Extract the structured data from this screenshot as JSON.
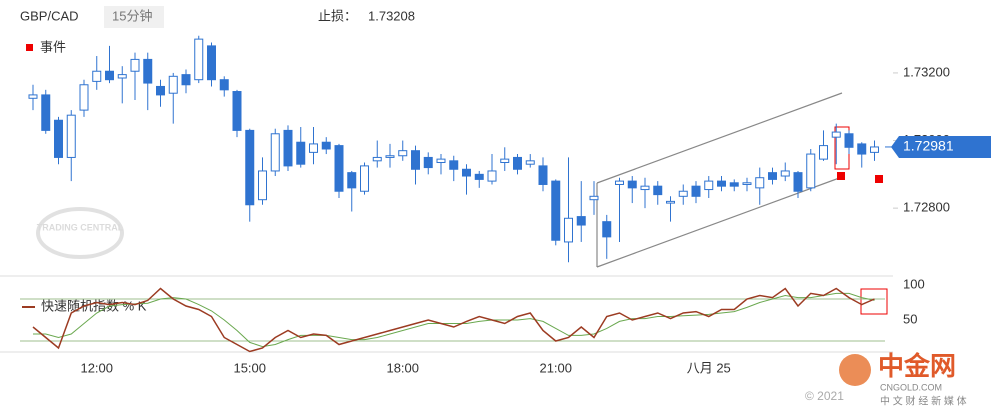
{
  "chart_data": [
    {
      "type": "candlestick",
      "title": "GBP/CAD",
      "interval": "15分钟",
      "stop_loss_label": "止损：",
      "stop_loss": "1.73208",
      "event_legend": "事件",
      "categories": [
        null,
        null,
        null,
        null,
        null,
        "12:00",
        null,
        null,
        null,
        null,
        null,
        null,
        null,
        null,
        null,
        null,
        null,
        "15:00",
        null,
        null,
        null,
        null,
        null,
        null,
        null,
        null,
        null,
        null,
        null,
        "18:00",
        null,
        null,
        null,
        null,
        null,
        null,
        null,
        null,
        null,
        null,
        null,
        "21:00",
        null,
        null,
        null,
        null,
        null,
        null,
        null,
        null,
        null,
        null,
        null,
        "八月 25",
        null,
        null,
        null,
        null,
        null,
        null,
        null,
        null,
        null,
        null,
        null,
        null,
        null
      ],
      "open": [
        1.73125,
        1.73135,
        1.7306,
        1.7295,
        1.7309,
        1.73175,
        1.73205,
        1.73185,
        1.73205,
        1.7324,
        1.7316,
        1.7314,
        1.73195,
        1.7318,
        1.7328,
        1.7318,
        1.73145,
        1.7303,
        1.72825,
        1.7291,
        1.7303,
        1.72995,
        1.72965,
        1.72995,
        1.72985,
        1.72905,
        1.7285,
        1.7294,
        1.7295,
        1.72955,
        1.7297,
        1.7295,
        1.72935,
        1.7294,
        1.72915,
        1.729,
        1.7288,
        1.72935,
        1.7295,
        1.7293,
        1.72925,
        1.7288,
        1.727,
        1.72775,
        1.72825,
        1.7276,
        1.7287,
        1.7288,
        1.72855,
        1.72865,
        1.72815,
        1.72835,
        1.72865,
        1.72855,
        1.7288,
        1.72875,
        1.7287,
        1.7286,
        1.72905,
        1.72895,
        1.72905,
        1.7286,
        1.72945,
        1.7301,
        1.7302,
        1.7299,
        1.72965
      ],
      "high": [
        1.73165,
        1.7315,
        1.7307,
        1.7309,
        1.7318,
        1.7325,
        1.7328,
        1.7322,
        1.7326,
        1.7326,
        1.7318,
        1.732,
        1.7321,
        1.7331,
        1.7329,
        1.7319,
        1.7315,
        1.73035,
        1.7295,
        1.73035,
        1.73045,
        1.7304,
        1.7304,
        1.7301,
        1.7299,
        1.7291,
        1.72935,
        1.73,
        1.7299,
        1.73,
        1.72985,
        1.72965,
        1.7296,
        1.72955,
        1.7293,
        1.7291,
        1.7296,
        1.7298,
        1.7296,
        1.7296,
        1.7295,
        1.72885,
        1.7295,
        1.7288,
        1.7288,
        1.7278,
        1.7289,
        1.72895,
        1.7289,
        1.7288,
        1.72835,
        1.7287,
        1.7288,
        1.72895,
        1.72895,
        1.72885,
        1.7289,
        1.7292,
        1.7292,
        1.72935,
        1.7291,
        1.72975,
        1.7303,
        1.7305,
        1.7303,
        1.72995,
        1.73
      ],
      "low": [
        1.7309,
        1.7302,
        1.7293,
        1.7288,
        1.7307,
        1.7315,
        1.7317,
        1.7311,
        1.7312,
        1.7309,
        1.731,
        1.7305,
        1.7314,
        1.7317,
        1.7316,
        1.7313,
        1.7301,
        1.7276,
        1.7281,
        1.72895,
        1.7291,
        1.7292,
        1.7293,
        1.7296,
        1.7283,
        1.7279,
        1.7284,
        1.7292,
        1.7292,
        1.7294,
        1.7287,
        1.729,
        1.729,
        1.7288,
        1.7284,
        1.7286,
        1.7287,
        1.7291,
        1.729,
        1.7292,
        1.7285,
        1.7269,
        1.7264,
        1.727,
        1.7278,
        1.7265,
        1.727,
        1.72815,
        1.728,
        1.7281,
        1.7276,
        1.7281,
        1.72815,
        1.7283,
        1.7285,
        1.7285,
        1.7285,
        1.7281,
        1.7287,
        1.7288,
        1.7283,
        1.7285,
        1.7294,
        1.7293,
        1.7296,
        1.7292,
        1.7294
      ],
      "close": [
        1.73135,
        1.7303,
        1.7295,
        1.73075,
        1.73165,
        1.73205,
        1.7318,
        1.73195,
        1.7324,
        1.7317,
        1.73135,
        1.7319,
        1.73165,
        1.733,
        1.7318,
        1.7315,
        1.7303,
        1.7281,
        1.7291,
        1.7302,
        1.72925,
        1.7293,
        1.7299,
        1.72975,
        1.7285,
        1.7286,
        1.72925,
        1.7295,
        1.72955,
        1.7297,
        1.72915,
        1.7292,
        1.72945,
        1.72915,
        1.72895,
        1.72885,
        1.7291,
        1.72945,
        1.72915,
        1.7294,
        1.7287,
        1.72705,
        1.7277,
        1.7275,
        1.72835,
        1.72715,
        1.7288,
        1.7286,
        1.72865,
        1.7284,
        1.7282,
        1.7285,
        1.72835,
        1.7288,
        1.72865,
        1.72865,
        1.72875,
        1.7289,
        1.72885,
        1.7291,
        1.7285,
        1.7296,
        1.72985,
        1.73025,
        1.7298,
        1.7296,
        1.72981
      ],
      "up_color": "#ffffff",
      "down_color": "#2f73d0",
      "edge_color": "#2f73d0",
      "ylim": [
        1.72617,
        1.73327
      ],
      "yticks": [
        {
          "value": 1.728,
          "label": "1.72800"
        },
        {
          "value": 1.73,
          "label": "1.73000"
        },
        {
          "value": 1.732,
          "label": "1.73200"
        }
      ],
      "last_price": {
        "value": 1.72981,
        "label": "1.72981"
      }
    },
    {
      "type": "line",
      "series": [
        {
          "name": "快速随机指数 % K",
          "color": "#9c3b22",
          "values": [
            40,
            25,
            10,
            60,
            70,
            75,
            72,
            75,
            72,
            78,
            95,
            80,
            70,
            65,
            55,
            25,
            15,
            5,
            10,
            25,
            35,
            25,
            30,
            28,
            15,
            20,
            25,
            30,
            35,
            40,
            45,
            50,
            45,
            40,
            48,
            55,
            50,
            45,
            55,
            60,
            35,
            20,
            25,
            40,
            25,
            55,
            60,
            50,
            55,
            60,
            52,
            60,
            62,
            55,
            65,
            65,
            80,
            85,
            82,
            95,
            70,
            88,
            85,
            95,
            82,
            72,
            80
          ]
        },
        {
          "color": "#6aa84f",
          "values": [
            30,
            30,
            25,
            30,
            45,
            60,
            70,
            72,
            73,
            74,
            80,
            82,
            80,
            72,
            63,
            50,
            35,
            18,
            12,
            15,
            22,
            28,
            28,
            28,
            25,
            22,
            22,
            25,
            30,
            35,
            40,
            45,
            45,
            45,
            45,
            48,
            50,
            50,
            50,
            52,
            48,
            38,
            28,
            28,
            30,
            38,
            48,
            52,
            52,
            55,
            55,
            56,
            57,
            58,
            60,
            62,
            68,
            75,
            80,
            85,
            82,
            82,
            85,
            88,
            88,
            82,
            78
          ]
        }
      ],
      "ylim": [
        0,
        110
      ],
      "yticks": [
        50,
        100
      ],
      "levels": [
        80,
        20
      ]
    }
  ],
  "watermark": {
    "logo": "TRADING CENTRAL",
    "copyright": "© 2021",
    "brand": "中金网",
    "site": "CNGOLD.COM",
    "slogan": "中 文 财 经 新 媒 体"
  }
}
